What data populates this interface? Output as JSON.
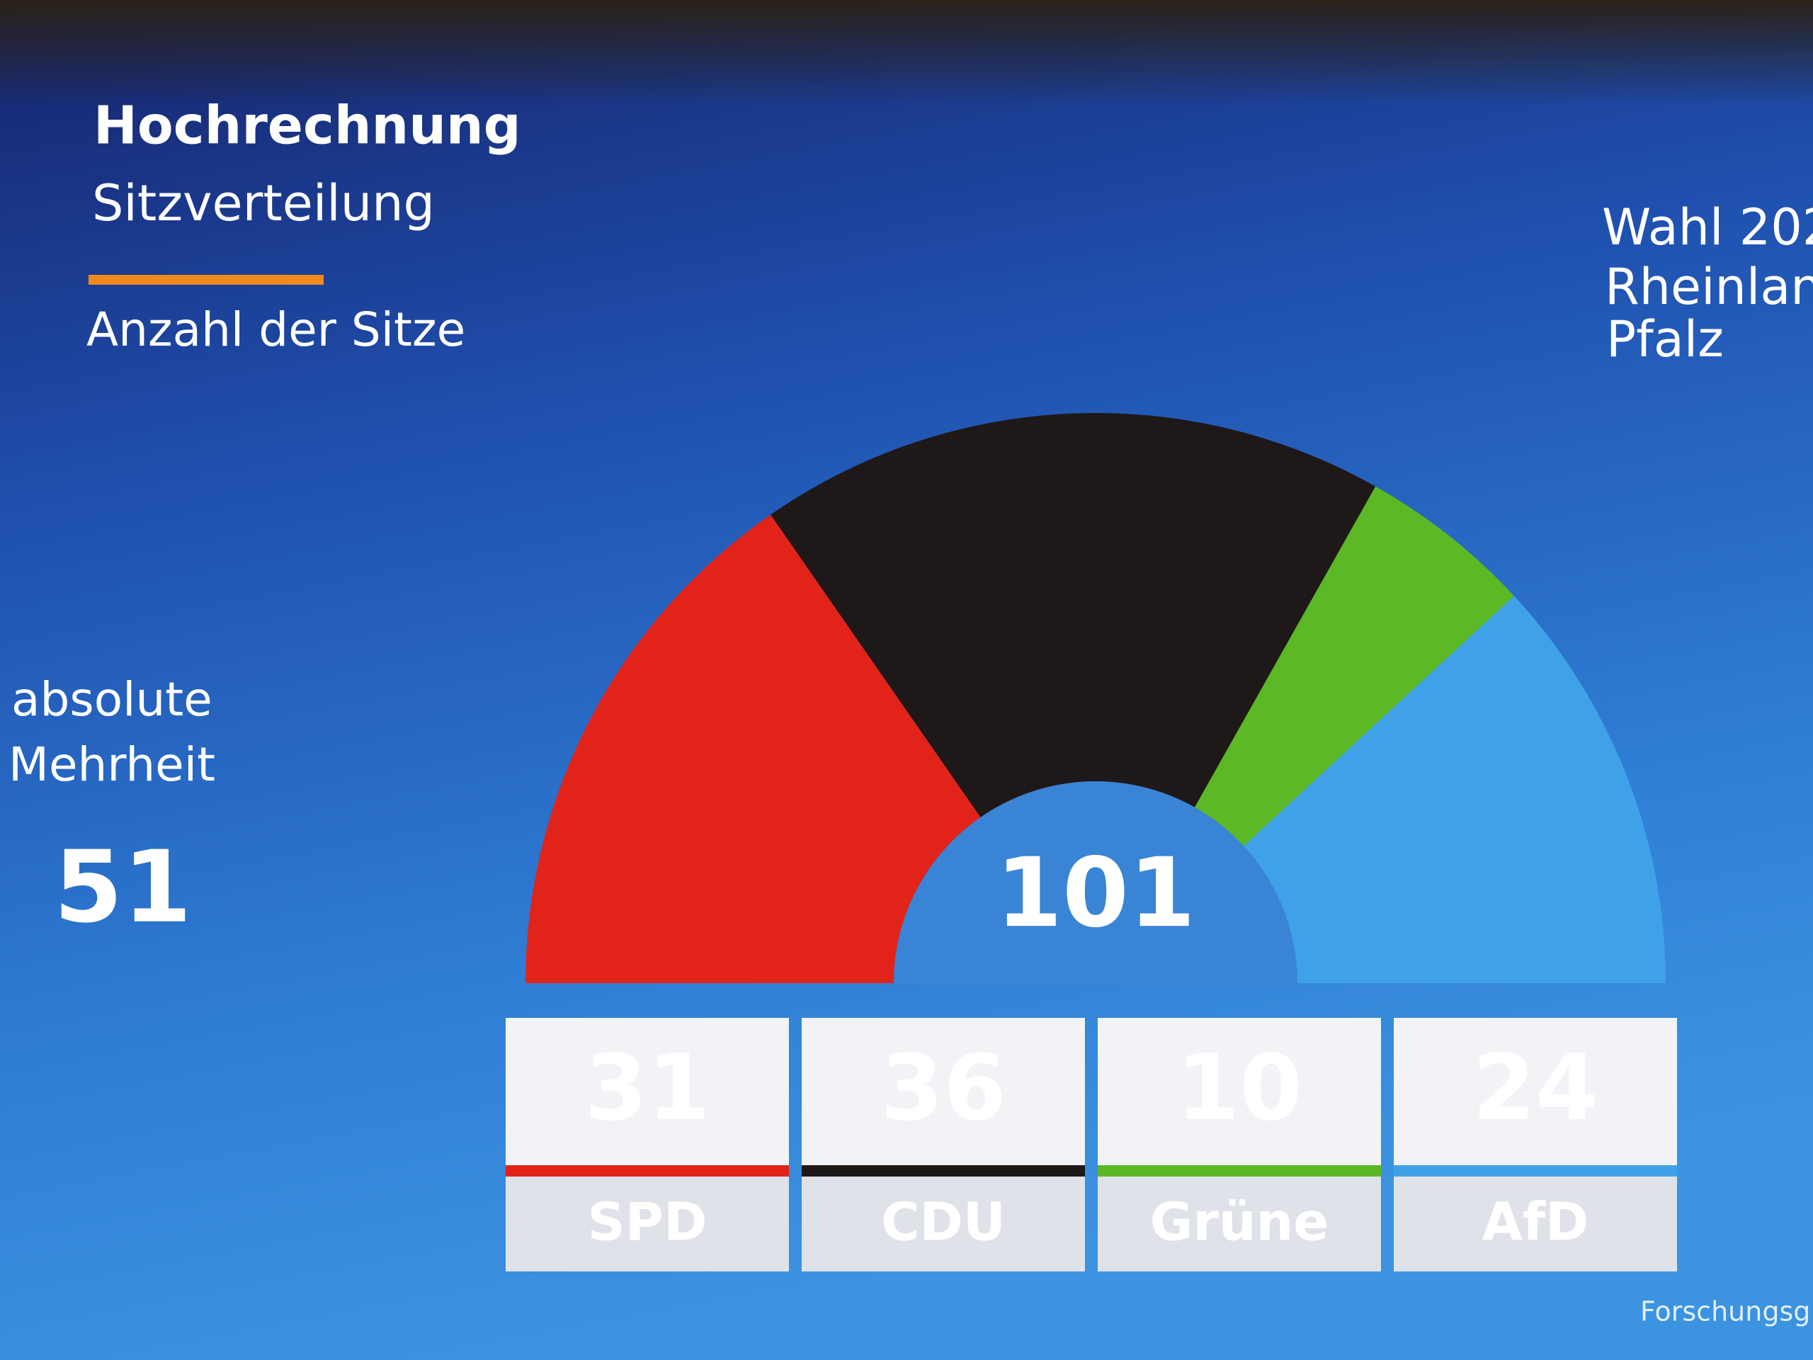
{
  "chart_data": {
    "type": "semicircle",
    "title": "Hochrechnung",
    "subtitle": "Sitzverteilung",
    "value_label": "Anzahl der Sitze",
    "majority_label": [
      "absolute",
      "Mehrheit"
    ],
    "majority": 51,
    "total": 101,
    "election_label": [
      "Wahl 202",
      "Rheinlan",
      "Pfalz"
    ],
    "source": "Forschungsg",
    "categories": [
      "SPD",
      "CDU",
      "Grüne",
      "AfD"
    ],
    "values": [
      31,
      36,
      10,
      24
    ],
    "colors": [
      "#e2231a",
      "#1f1818",
      "#5cb824",
      "#3fa2e8"
    ]
  }
}
